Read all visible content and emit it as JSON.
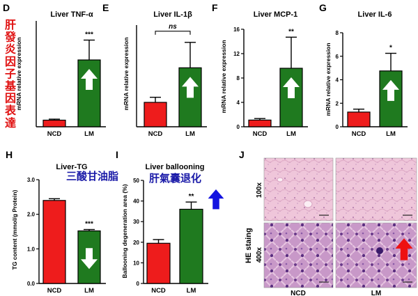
{
  "colors": {
    "ncd": "#ee1c1c",
    "lm": "#1f7a1f",
    "up_arrow": "#ffffff",
    "blue_arrow": "#1414e0",
    "red_arrow": "#ee1111",
    "annotation_red": "#e01010",
    "annotation_blue": "#1a1aa8"
  },
  "side_annotation": "肝發炎因子基因表達",
  "stain_label": "HE staing",
  "chart_data": [
    {
      "id": "D",
      "letter": "D",
      "type": "bar",
      "title": "Liver TNF-α",
      "ylabel": "mRNA relative expression",
      "categories": [
        "NCD",
        "LM"
      ],
      "values": [
        1.0,
        10.1
      ],
      "errors": [
        0.15,
        3.0
      ],
      "ylim": [
        0,
        16
      ],
      "yticks": [],
      "sig": "***",
      "sig_type": "star",
      "arrows": [
        "",
        "up-white"
      ]
    },
    {
      "id": "E",
      "letter": "E",
      "type": "bar",
      "title": "Liver IL-1β",
      "ylabel": "mRNA relative expression",
      "categories": [
        "NCD",
        "LM"
      ],
      "values": [
        1.2,
        2.9
      ],
      "errors": [
        0.25,
        1.25
      ],
      "ylim": [
        0,
        5
      ],
      "yticks": [],
      "sig": "ns",
      "sig_type": "bracket",
      "arrows": [
        "",
        "up-white"
      ]
    },
    {
      "id": "F",
      "letter": "F",
      "type": "bar",
      "title": "Liver MCP-1",
      "ylabel": "mRNA relative expression",
      "categories": [
        "NCD",
        "LM"
      ],
      "values": [
        1.1,
        9.6
      ],
      "errors": [
        0.25,
        5.1
      ],
      "ylim": [
        0,
        16
      ],
      "yticks": [
        "0",
        "4",
        "8",
        "12",
        "16"
      ],
      "sig": "**",
      "sig_type": "star",
      "arrows": [
        "",
        "up-white"
      ]
    },
    {
      "id": "G",
      "letter": "G",
      "type": "bar",
      "title": "Liver IL-6",
      "ylabel": "mRNA relative expression",
      "categories": [
        "NCD",
        "LM"
      ],
      "values": [
        1.25,
        4.75
      ],
      "errors": [
        0.25,
        1.5
      ],
      "ylim": [
        0,
        8
      ],
      "yticks": [
        "0",
        "2",
        "4",
        "6",
        "8"
      ],
      "sig": "*",
      "sig_type": "star",
      "arrows": [
        "",
        "up-white"
      ]
    },
    {
      "id": "H",
      "letter": "H",
      "type": "bar",
      "title": "Liver-TG",
      "ylabel": "TG content (mmol/g Protein)",
      "categories": [
        "NCD",
        "LM"
      ],
      "values": [
        2.4,
        1.52
      ],
      "errors": [
        0.05,
        0.04
      ],
      "ylim": [
        0,
        3
      ],
      "yticks": [
        "0.0",
        "1.0",
        "2.0",
        "3.0"
      ],
      "sig": "***",
      "sig_type": "star",
      "arrows": [
        "",
        "down-white"
      ],
      "annotation": "三酸甘油脂"
    },
    {
      "id": "I",
      "letter": "I",
      "type": "bar",
      "title": "Liver ballooning",
      "ylabel": "Ballooning degeneration area (%)",
      "categories": [
        "NCD",
        "LM"
      ],
      "values": [
        19.5,
        36
      ],
      "errors": [
        1.8,
        3.5
      ],
      "ylim": [
        0,
        50
      ],
      "yticks": [
        "0",
        "10",
        "20",
        "30",
        "40",
        "50"
      ],
      "sig": "**",
      "sig_type": "star",
      "arrows": [
        "",
        ""
      ],
      "annotation": "肝氣囊退化"
    }
  ],
  "histology": {
    "letter": "J",
    "rows": [
      "100x",
      "400x"
    ],
    "cols": [
      "NCD",
      "LM"
    ]
  }
}
